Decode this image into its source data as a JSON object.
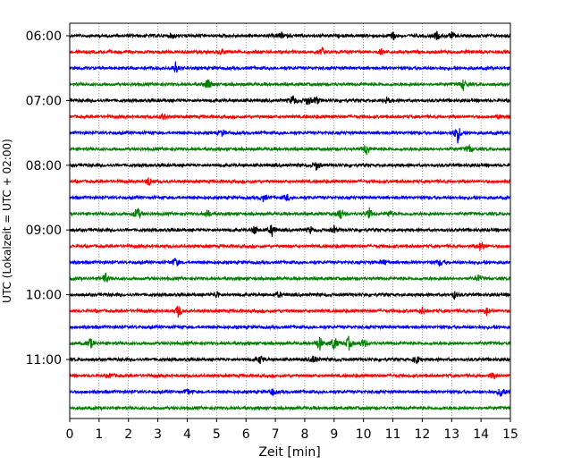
{
  "chart_data": {
    "type": "line",
    "title": "",
    "xlabel": "Zeit  [min]",
    "ylabel": "UTC (Lokalzeit = UTC + 02:00)",
    "xlim": [
      0,
      15
    ],
    "x_ticks": [
      0,
      1,
      2,
      3,
      4,
      5,
      6,
      7,
      8,
      9,
      10,
      11,
      12,
      13,
      14,
      15
    ],
    "x_tick_labels": [
      "0",
      "1",
      "2",
      "3",
      "4",
      "5",
      "6",
      "7",
      "8",
      "9",
      "10",
      "11",
      "12",
      "13",
      "14",
      "15"
    ],
    "y_tick_labels": [
      "06:00",
      "07:00",
      "08:00",
      "09:00",
      "10:00",
      "11:00"
    ],
    "grid": "vertical dotted",
    "legend": "none",
    "trace_minutes": 15,
    "color_cycle": [
      "#000000",
      "#ff0000",
      "#0000ff",
      "#008000"
    ],
    "traces": [
      {
        "start": "06:00",
        "color": "#000000",
        "events": [
          [
            3.5,
            0.5
          ],
          [
            7.2,
            0.6
          ],
          [
            11.0,
            1.0
          ],
          [
            12.5,
            0.9
          ],
          [
            13.0,
            0.7
          ]
        ]
      },
      {
        "start": "06:15",
        "color": "#ff0000",
        "events": [
          [
            5.2,
            0.6
          ],
          [
            8.6,
            0.7
          ],
          [
            10.6,
            0.5
          ]
        ]
      },
      {
        "start": "06:30",
        "color": "#0000ff",
        "events": [
          [
            3.6,
            1.2
          ]
        ]
      },
      {
        "start": "06:45",
        "color": "#008000",
        "events": [
          [
            4.7,
            1.4
          ],
          [
            13.4,
            1.2
          ]
        ]
      },
      {
        "start": "07:00",
        "color": "#000000",
        "events": [
          [
            7.6,
            1.2
          ],
          [
            8.1,
            1.0
          ],
          [
            8.4,
            0.9
          ],
          [
            10.8,
            0.6
          ]
        ]
      },
      {
        "start": "07:15",
        "color": "#ff0000",
        "events": [
          [
            3.2,
            0.7
          ],
          [
            14.6,
            0.5
          ]
        ]
      },
      {
        "start": "07:30",
        "color": "#0000ff",
        "events": [
          [
            5.2,
            0.7
          ],
          [
            13.2,
            2.2
          ]
        ]
      },
      {
        "start": "07:45",
        "color": "#008000",
        "events": [
          [
            10.1,
            1.3
          ],
          [
            13.6,
            0.9
          ]
        ]
      },
      {
        "start": "08:00",
        "color": "#000000",
        "events": [
          [
            8.4,
            1.0
          ]
        ]
      },
      {
        "start": "08:15",
        "color": "#ff0000",
        "events": [
          [
            2.7,
            1.0
          ]
        ]
      },
      {
        "start": "08:30",
        "color": "#0000ff",
        "events": [
          [
            6.6,
            0.8
          ],
          [
            7.4,
            0.7
          ]
        ]
      },
      {
        "start": "08:45",
        "color": "#008000",
        "events": [
          [
            2.3,
            1.6
          ],
          [
            4.7,
            0.8
          ],
          [
            9.2,
            1.3
          ],
          [
            10.2,
            1.1
          ],
          [
            10.9,
            0.6
          ]
        ]
      },
      {
        "start": "09:00",
        "color": "#000000",
        "events": [
          [
            6.3,
            1.0
          ],
          [
            6.9,
            1.5
          ],
          [
            8.2,
            0.7
          ],
          [
            9.0,
            0.7
          ]
        ]
      },
      {
        "start": "09:15",
        "color": "#ff0000",
        "events": [
          [
            14.0,
            1.2
          ]
        ]
      },
      {
        "start": "09:30",
        "color": "#0000ff",
        "events": [
          [
            3.6,
            1.0
          ],
          [
            10.7,
            0.6
          ],
          [
            12.6,
            0.7
          ]
        ]
      },
      {
        "start": "09:45",
        "color": "#008000",
        "events": [
          [
            1.2,
            1.3
          ],
          [
            13.9,
            0.8
          ]
        ]
      },
      {
        "start": "10:00",
        "color": "#000000",
        "events": [
          [
            5.0,
            0.7
          ],
          [
            7.1,
            0.6
          ],
          [
            13.1,
            0.7
          ]
        ]
      },
      {
        "start": "10:15",
        "color": "#ff0000",
        "events": [
          [
            3.7,
            1.4
          ],
          [
            12.0,
            0.7
          ],
          [
            14.2,
            0.9
          ]
        ]
      },
      {
        "start": "10:30",
        "color": "#0000ff",
        "events": []
      },
      {
        "start": "10:45",
        "color": "#008000",
        "events": [
          [
            0.7,
            1.2
          ],
          [
            8.5,
            1.6
          ],
          [
            9.0,
            1.7
          ],
          [
            9.5,
            1.4
          ],
          [
            10.0,
            1.1
          ]
        ]
      },
      {
        "start": "11:00",
        "color": "#000000",
        "events": [
          [
            6.5,
            1.0
          ],
          [
            8.3,
            0.8
          ],
          [
            11.8,
            1.0
          ]
        ]
      },
      {
        "start": "11:15",
        "color": "#ff0000",
        "events": [
          [
            1.4,
            0.5
          ],
          [
            14.4,
            0.8
          ]
        ]
      },
      {
        "start": "11:30",
        "color": "#0000ff",
        "events": [
          [
            4.0,
            0.7
          ],
          [
            6.9,
            0.8
          ],
          [
            14.7,
            1.4
          ]
        ]
      },
      {
        "start": "11:45",
        "color": "#008000",
        "events": []
      }
    ]
  }
}
